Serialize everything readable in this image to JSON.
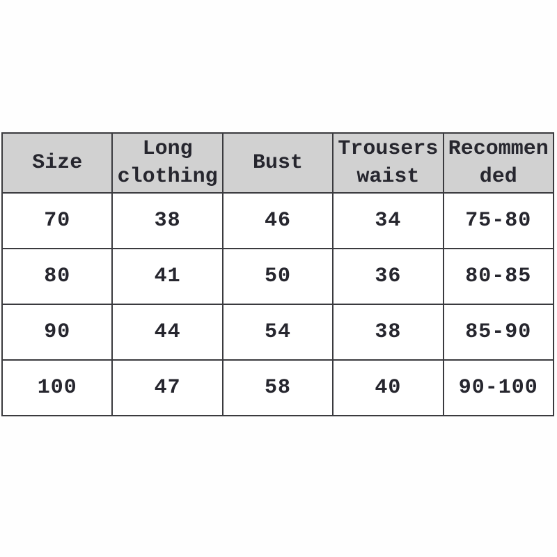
{
  "page": {
    "background_color": "#fefefe",
    "description": "Garment size chart table"
  },
  "colors": {
    "header_background": "#d1d1d1",
    "cell_background": "#ffffff",
    "border": "#3a3a3e",
    "text": "#26262e"
  },
  "table": {
    "headers": [
      {
        "label": "Size"
      },
      {
        "label": "Long\nclothing"
      },
      {
        "label": "Bust"
      },
      {
        "label": "Trousers\nwaist"
      },
      {
        "label": "Recommen\nded"
      }
    ],
    "rows": [
      [
        "70",
        "38",
        "46",
        "34",
        "75-80"
      ],
      [
        "80",
        "41",
        "50",
        "36",
        "80-85"
      ],
      [
        "90",
        "44",
        "54",
        "38",
        "85-90"
      ],
      [
        "100",
        "47",
        "58",
        "40",
        "90-100"
      ]
    ]
  },
  "chart_data": {
    "type": "table",
    "title": "",
    "columns": [
      "Size",
      "Long clothing",
      "Bust",
      "Trousers waist",
      "Recommended"
    ],
    "rows": [
      {
        "size": "70",
        "long_clothing": 38,
        "bust": 46,
        "trousers_waist": 34,
        "recommended": "75-80"
      },
      {
        "size": "80",
        "long_clothing": 41,
        "bust": 50,
        "trousers_waist": 36,
        "recommended": "80-85"
      },
      {
        "size": "90",
        "long_clothing": 44,
        "bust": 54,
        "trousers_waist": 38,
        "recommended": "85-90"
      },
      {
        "size": "100",
        "long_clothing": 47,
        "bust": 58,
        "trousers_waist": 40,
        "recommended": "90-100"
      }
    ]
  }
}
